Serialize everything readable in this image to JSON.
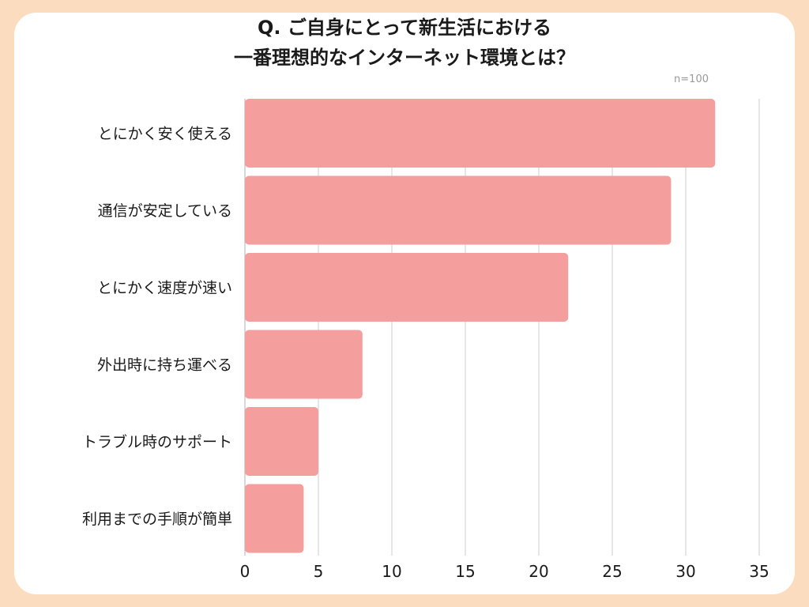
{
  "colors": {
    "background": "#fcdcbf",
    "card": "#ffffff",
    "bar": "#f49e9e",
    "grid": "#d6d6d6",
    "text": "#1a1a1a",
    "note": "#9a9a9a"
  },
  "chart_data": {
    "type": "bar",
    "orientation": "horizontal",
    "title_lines": [
      "Q. ご自身にとって新生活における",
      "一番理想的なインターネット環境とは？"
    ],
    "note": "n=100",
    "categories": [
      "とにかく安く使える",
      "通信が安定している",
      "とにかく速度が速い",
      "外出時に持ち運べる",
      "トラブル時のサポート",
      "利用までの手順が簡単"
    ],
    "values": [
      32,
      29,
      22,
      8,
      5,
      4
    ],
    "xlim": [
      0,
      35
    ],
    "xticks": [
      "0",
      "5",
      "10",
      "15",
      "20",
      "25",
      "30",
      "35"
    ],
    "grid": true
  }
}
